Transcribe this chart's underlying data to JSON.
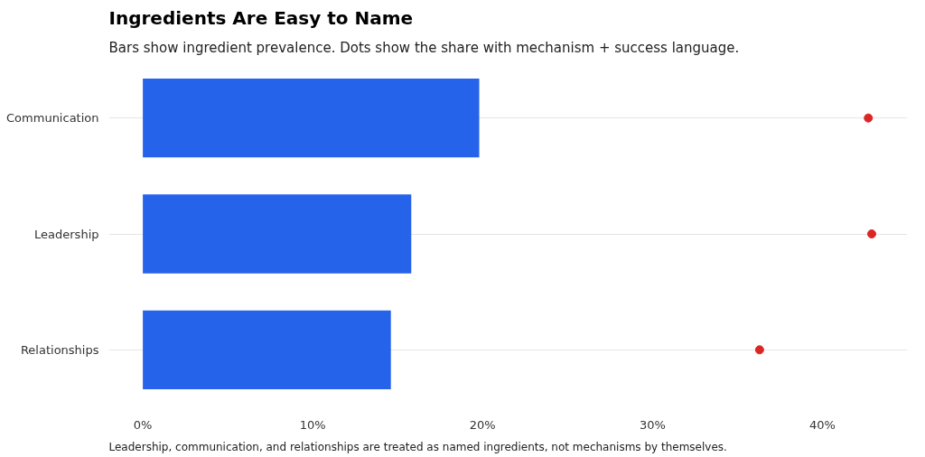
{
  "chart_data": {
    "type": "bar",
    "orientation": "horizontal",
    "title": "Ingredients Are Easy to Name",
    "subtitle": "Bars show ingredient prevalence. Dots show the share with mechanism + success language.",
    "categories": [
      "Communication",
      "Leadership",
      "Relationships"
    ],
    "series": [
      {
        "color": "#2563eb",
        "values": [
          19.8,
          15.8,
          14.6
        ]
      },
      {
        "type": "scatter",
        "color": "#dc2626",
        "values": [
          42.7,
          42.9,
          36.3
        ],
        "marker": "circle"
      }
    ],
    "xlim": [
      -2,
      45
    ],
    "xticks": [
      {
        "value": 0,
        "label": "0%"
      },
      {
        "value": 10,
        "label": "10%"
      },
      {
        "value": 20,
        "label": "20%"
      },
      {
        "value": 30,
        "label": "30%"
      },
      {
        "value": 40,
        "label": "40%"
      }
    ],
    "grid": "y",
    "annotations": [
      "Leadership, communication, and relationships are treated as named ingredients, not mechanisms by themselves."
    ]
  }
}
